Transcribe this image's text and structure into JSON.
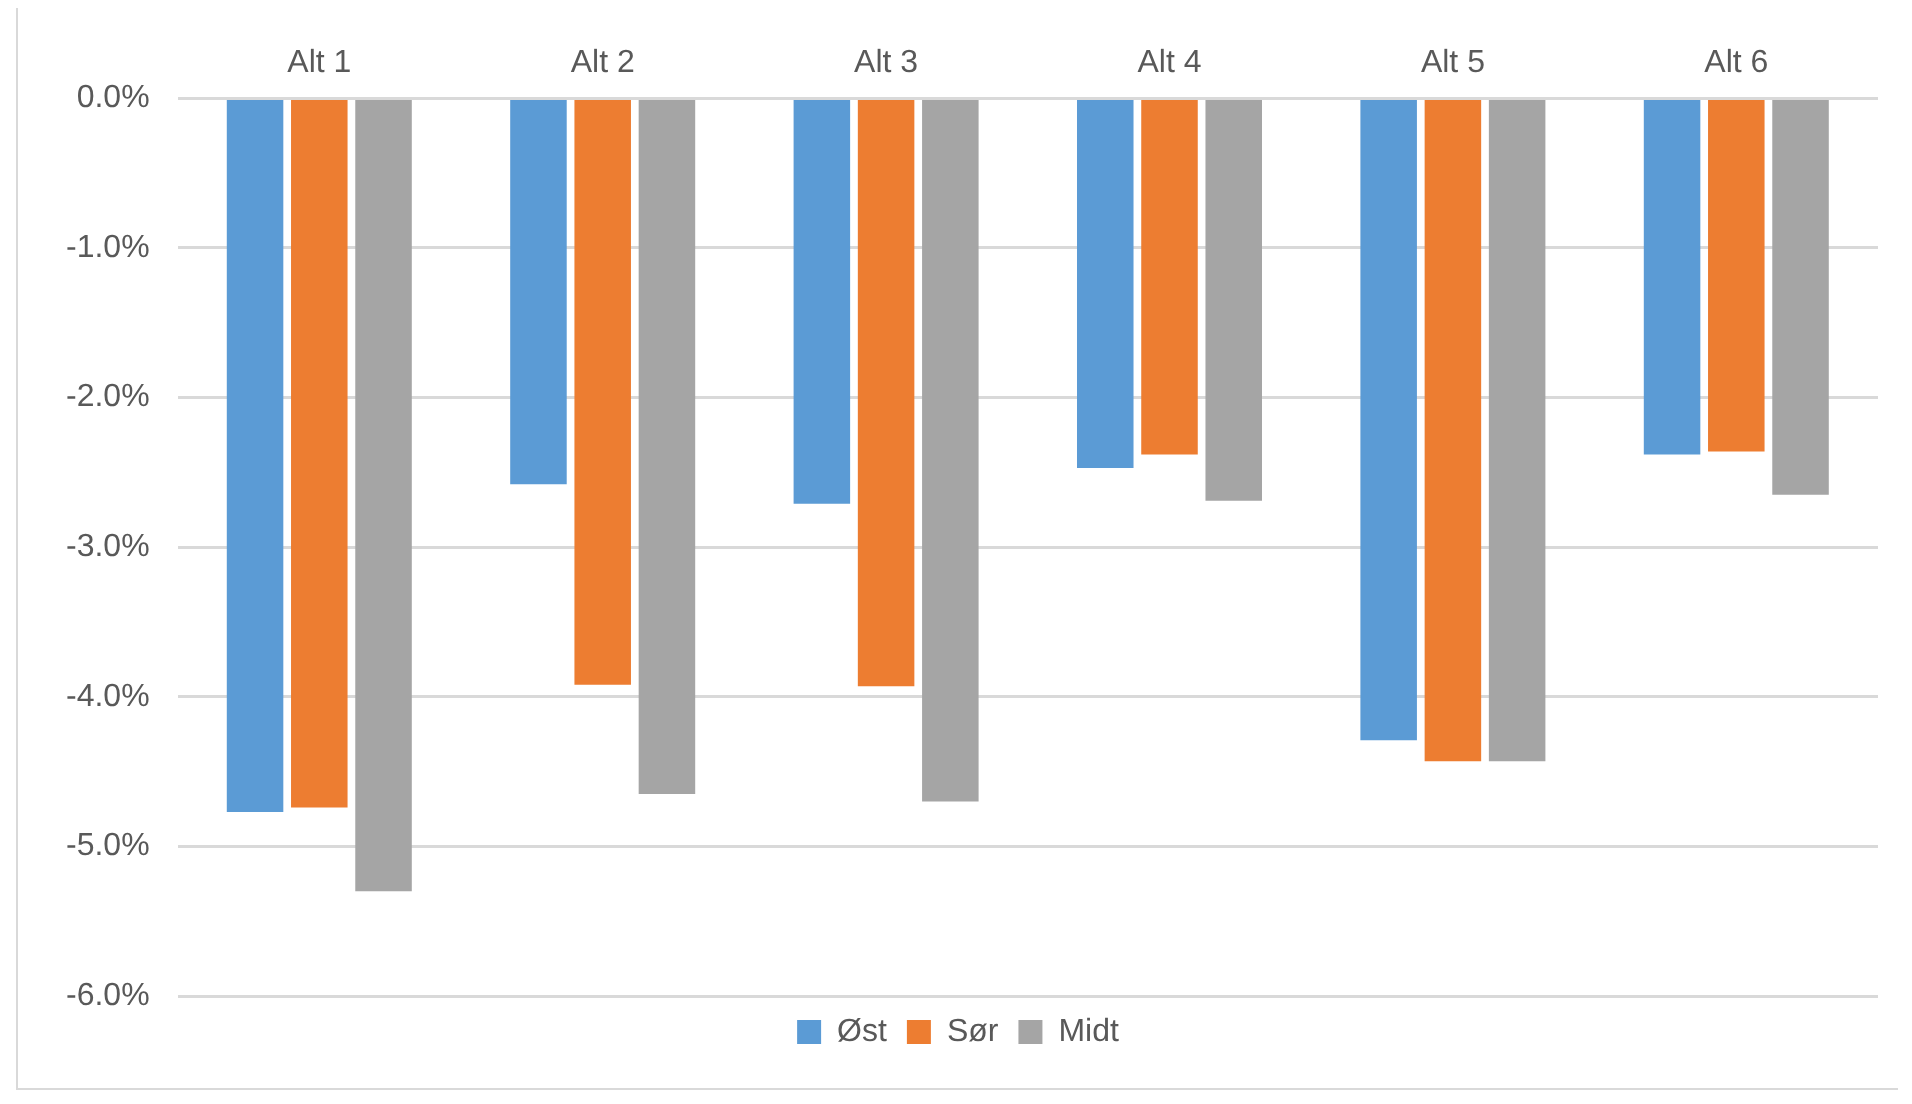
{
  "chart_data": {
    "type": "bar",
    "categories": [
      "Alt 1",
      "Alt 2",
      "Alt 3",
      "Alt 4",
      "Alt 5",
      "Alt 6"
    ],
    "series": [
      {
        "name": "Øst",
        "color": "#5b9bd5",
        "values": [
          -4.77,
          -2.58,
          -2.71,
          -2.47,
          -4.29,
          -2.38
        ]
      },
      {
        "name": "Sør",
        "color": "#ed7d31",
        "values": [
          -4.74,
          -3.92,
          -3.93,
          -2.38,
          -4.43,
          -2.36
        ]
      },
      {
        "name": "Midt",
        "color": "#a5a5a5",
        "values": [
          -5.3,
          -4.65,
          -4.7,
          -2.69,
          -4.43,
          -2.65
        ]
      }
    ],
    "ylim": [
      -6,
      0
    ],
    "yticks": [
      {
        "value": 0,
        "label": "0.0%"
      },
      {
        "value": -1,
        "label": "-1.0%"
      },
      {
        "value": -2,
        "label": "-2.0%"
      },
      {
        "value": -3,
        "label": "-3.0%"
      },
      {
        "value": -4,
        "label": "-4.0%"
      },
      {
        "value": -5,
        "label": "-5.0%"
      },
      {
        "value": -6,
        "label": "-6.0%"
      }
    ],
    "grid": "y",
    "legend": "bottom"
  }
}
